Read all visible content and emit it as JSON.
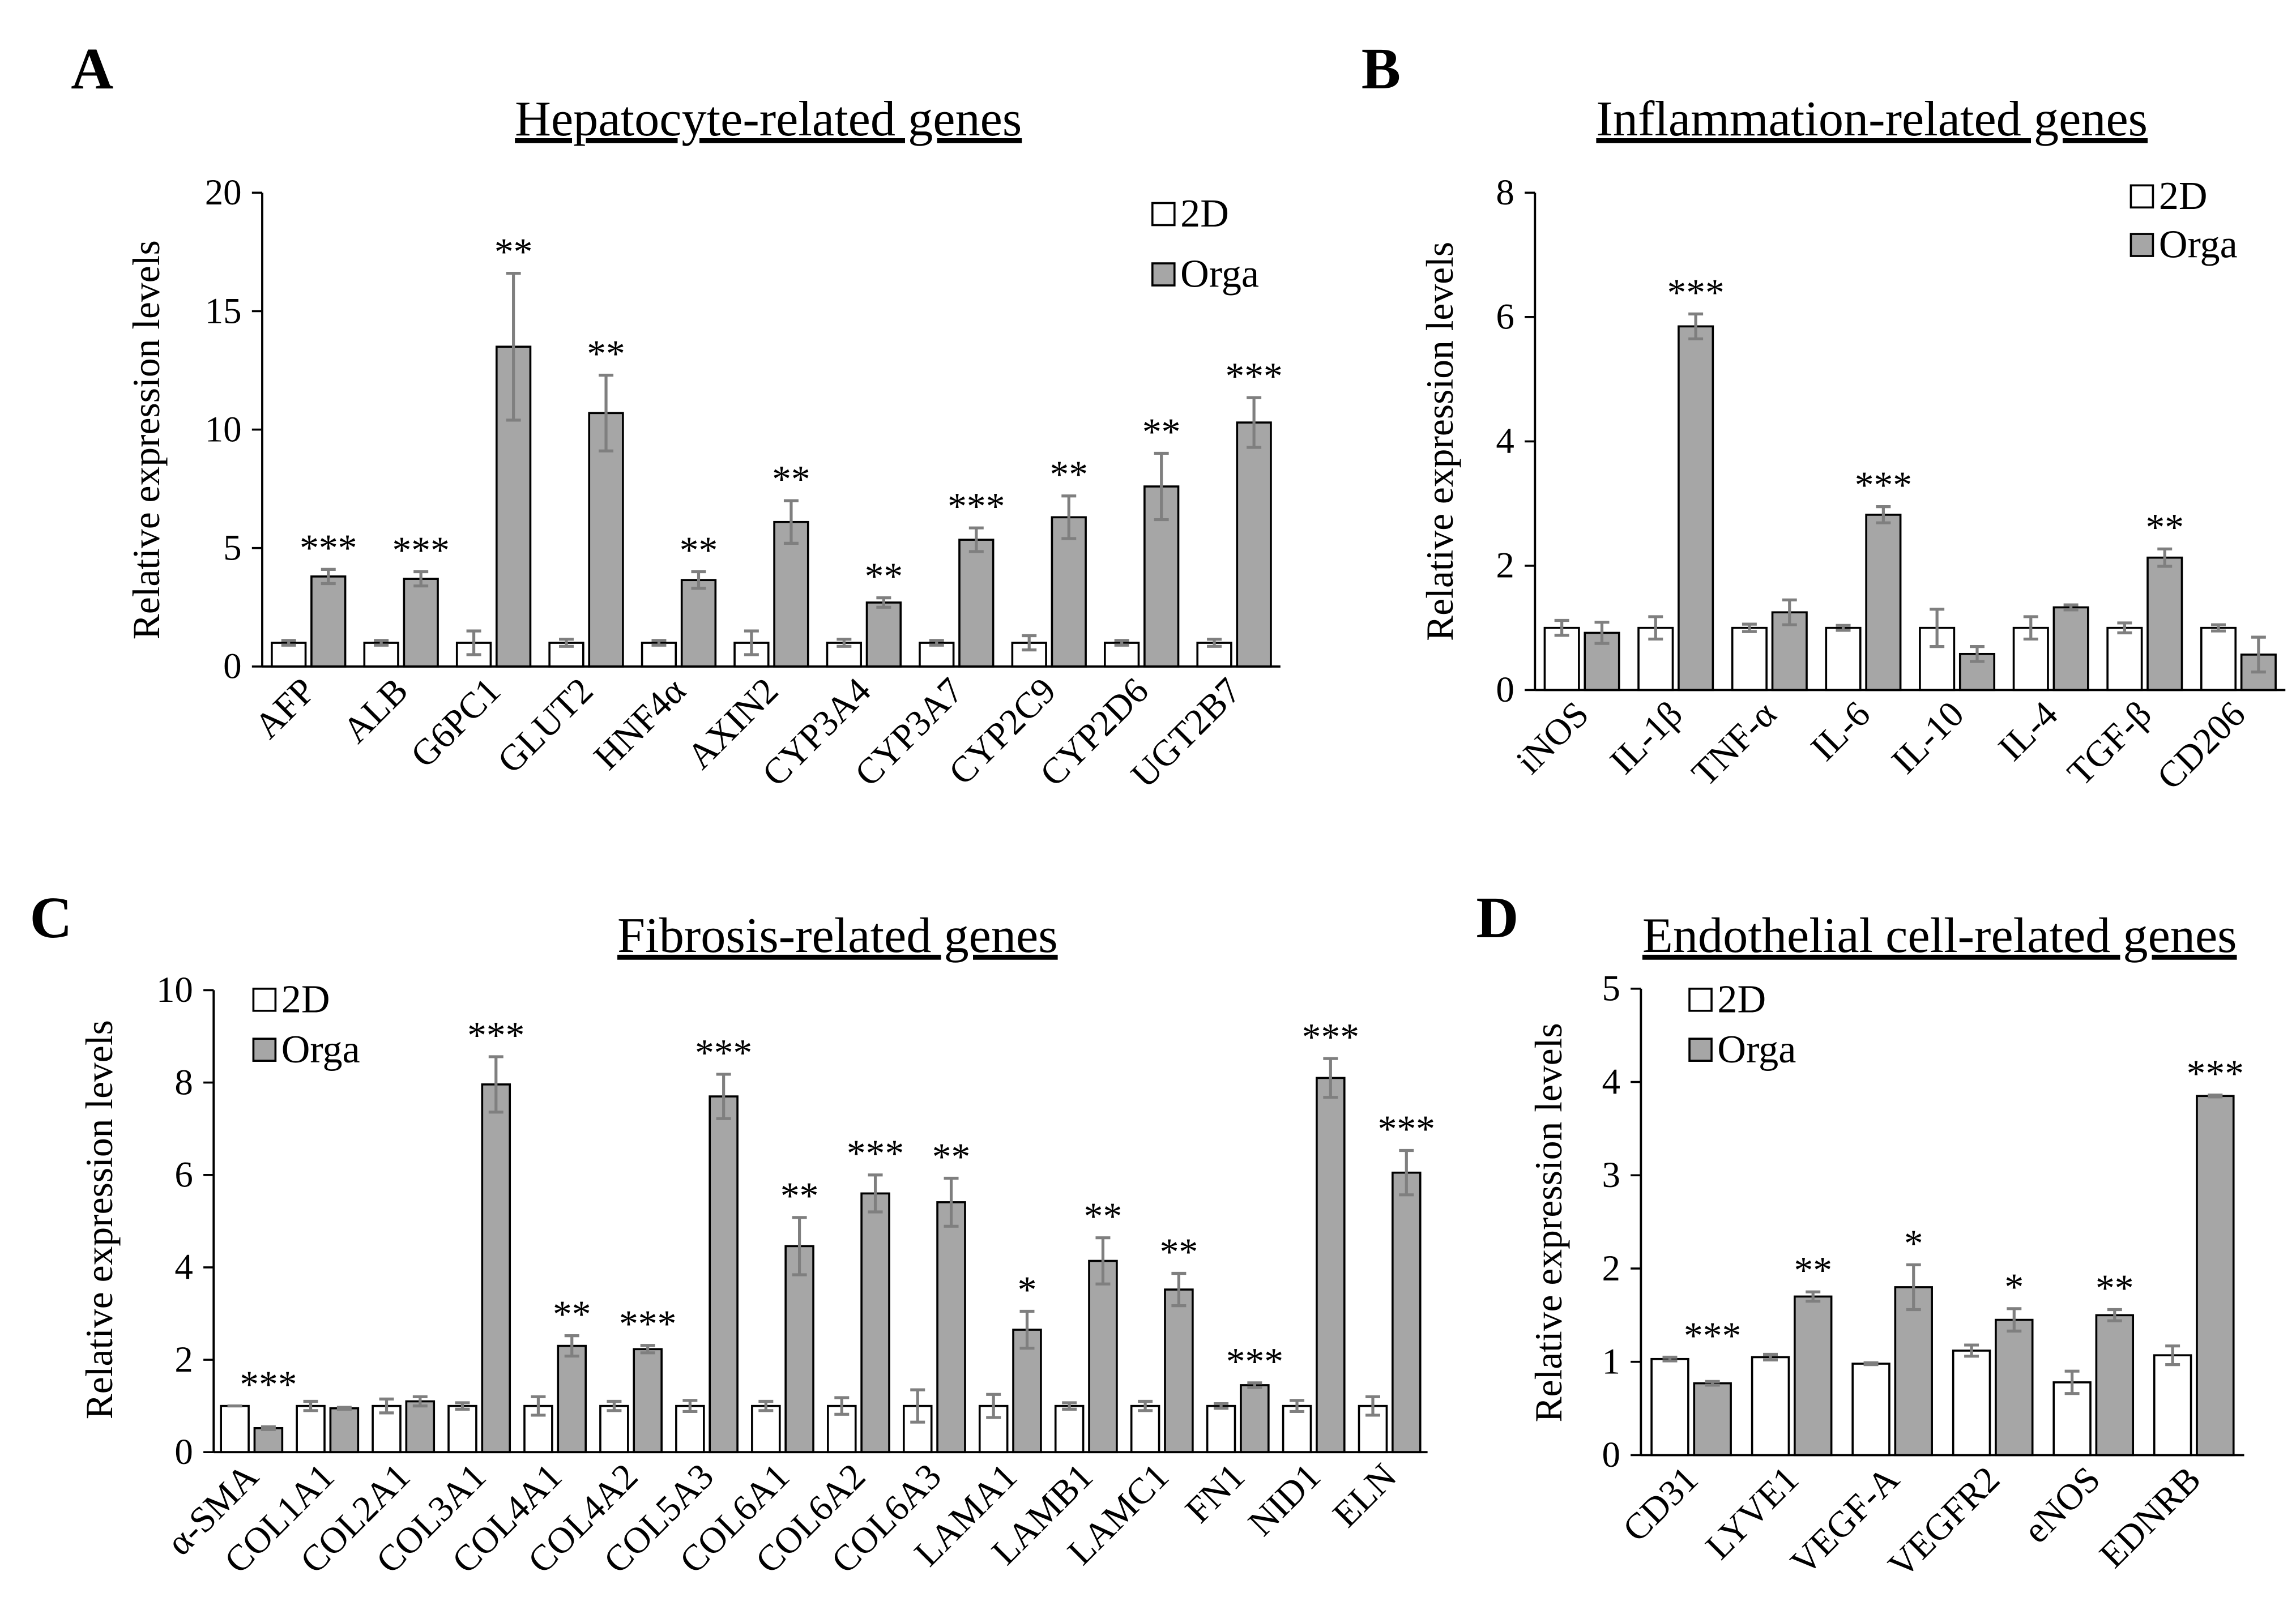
{
  "colors": {
    "error_bar": "#7f7f7f",
    "axis": "#000000",
    "bar_edge": "#000000"
  },
  "chart_data": [
    {
      "panel": "A",
      "type": "bar",
      "title": "Hepatocyte-related genes",
      "xlabel": "",
      "ylabel": "Relative expression levels",
      "ylim": [
        0,
        20
      ],
      "yticks": [
        0,
        5,
        10,
        15,
        20
      ],
      "grid": false,
      "legend": "top-right",
      "categories": [
        "AFP",
        "ALB",
        "G6PC1",
        "GLUT2",
        "HNF4α",
        "AXIN2",
        "CYP3A4",
        "CYP3A7",
        "CYP2C9",
        "CYP2D6",
        "UGT2B7"
      ],
      "series": [
        {
          "name": "2D",
          "color": "#ffffff",
          "values": [
            1,
            1,
            1,
            1,
            1,
            1,
            1,
            1,
            1,
            1,
            1
          ],
          "errors": [
            0.1,
            0.1,
            0.5,
            0.15,
            0.1,
            0.5,
            0.15,
            0.1,
            0.3,
            0.1,
            0.15
          ]
        },
        {
          "name": "Orga",
          "color": "#a6a6a6",
          "values": [
            3.8,
            3.7,
            13.5,
            10.7,
            3.65,
            6.1,
            2.7,
            5.35,
            6.3,
            7.6,
            10.3
          ],
          "errors": [
            0.3,
            0.3,
            3.1,
            1.6,
            0.35,
            0.9,
            0.2,
            0.5,
            0.9,
            1.4,
            1.05
          ]
        }
      ],
      "significance": [
        "***",
        "***",
        "**",
        "**",
        "**",
        "**",
        "**",
        "***",
        "**",
        "**",
        "***"
      ]
    },
    {
      "panel": "B",
      "type": "bar",
      "title": "Inflammation-related genes",
      "xlabel": "",
      "ylabel": "Relative expression levels",
      "ylim": [
        0,
        8
      ],
      "yticks": [
        0,
        2,
        4,
        6,
        8
      ],
      "grid": false,
      "legend": "top-right",
      "categories": [
        "iNOS",
        "IL-1β",
        "TNF-α",
        "IL-6",
        "IL-10",
        "IL-4",
        "TGF-β",
        "CD206"
      ],
      "series": [
        {
          "name": "2D",
          "color": "#ffffff",
          "values": [
            1,
            1,
            1,
            1,
            1,
            1,
            1,
            1
          ],
          "errors": [
            0.12,
            0.18,
            0.06,
            0.04,
            0.3,
            0.18,
            0.08,
            0.05
          ]
        },
        {
          "name": "Orga",
          "color": "#a6a6a6",
          "values": [
            0.92,
            5.85,
            1.25,
            2.82,
            0.58,
            1.33,
            2.13,
            0.57
          ],
          "errors": [
            0.17,
            0.2,
            0.2,
            0.13,
            0.12,
            0.04,
            0.14,
            0.28
          ]
        }
      ],
      "significance": [
        "",
        "***",
        "",
        "***",
        "",
        "",
        "**",
        ""
      ]
    },
    {
      "panel": "C",
      "type": "bar",
      "title": "Fibrosis-related genes",
      "xlabel": "",
      "ylabel": "Relative expression levels",
      "ylim": [
        0,
        10
      ],
      "yticks": [
        0,
        2,
        4,
        6,
        8,
        10
      ],
      "grid": false,
      "legend": "top-left",
      "categories": [
        "α-SMA",
        "COL1A1",
        "COL2A1",
        "COL3A1",
        "COL4A1",
        "COL4A2",
        "COL5A3",
        "COL6A1",
        "COL6A2",
        "COL6A3",
        "LAMA1",
        "LAMB1",
        "LAMC1",
        "FN1",
        "NID1",
        "ELN"
      ],
      "series": [
        {
          "name": "2D",
          "color": "#ffffff",
          "values": [
            1,
            1,
            1,
            1,
            1,
            1,
            1,
            1,
            1,
            1,
            1,
            1,
            1,
            1,
            1,
            1
          ],
          "errors": [
            0,
            0.1,
            0.15,
            0.07,
            0.2,
            0.1,
            0.12,
            0.1,
            0.18,
            0.35,
            0.25,
            0.07,
            0.1,
            0.05,
            0.12,
            0.2
          ]
        },
        {
          "name": "Orga",
          "color": "#a6a6a6",
          "values": [
            0.52,
            0.95,
            1.1,
            7.96,
            2.3,
            2.23,
            7.7,
            4.46,
            5.6,
            5.41,
            2.65,
            4.14,
            3.52,
            1.45,
            8.1,
            6.05
          ],
          "errors": [
            0.03,
            0.02,
            0.1,
            0.6,
            0.22,
            0.08,
            0.48,
            0.62,
            0.4,
            0.52,
            0.4,
            0.5,
            0.35,
            0.05,
            0.42,
            0.48
          ]
        }
      ],
      "significance": [
        "***",
        "",
        "",
        "***",
        "**",
        "***",
        "***",
        "**",
        "***",
        "**",
        "*",
        "**",
        "**",
        "***",
        "***",
        "***"
      ]
    },
    {
      "panel": "D",
      "type": "bar",
      "title": "Endothelial cell-related genes",
      "xlabel": "",
      "ylabel": "Relative expression levels",
      "ylim": [
        0,
        5
      ],
      "yticks": [
        0,
        1,
        2,
        3,
        4,
        5
      ],
      "grid": false,
      "legend": "top-left",
      "categories": [
        "CD31",
        "LYVE1",
        "VEGF-A",
        "VEGFR2",
        "eNOS",
        "EDNRB"
      ],
      "series": [
        {
          "name": "2D",
          "color": "#ffffff",
          "values": [
            1.03,
            1.05,
            0.98,
            1.12,
            0.78,
            1.07
          ],
          "errors": [
            0.02,
            0.03,
            0.01,
            0.06,
            0.12,
            0.1
          ]
        },
        {
          "name": "Orga",
          "color": "#a6a6a6",
          "values": [
            0.77,
            1.7,
            1.8,
            1.45,
            1.5,
            3.85
          ],
          "errors": [
            0.02,
            0.05,
            0.24,
            0.12,
            0.06,
            0.01
          ]
        }
      ],
      "significance": [
        "***",
        "**",
        "*",
        "*",
        "**",
        "***"
      ]
    }
  ]
}
